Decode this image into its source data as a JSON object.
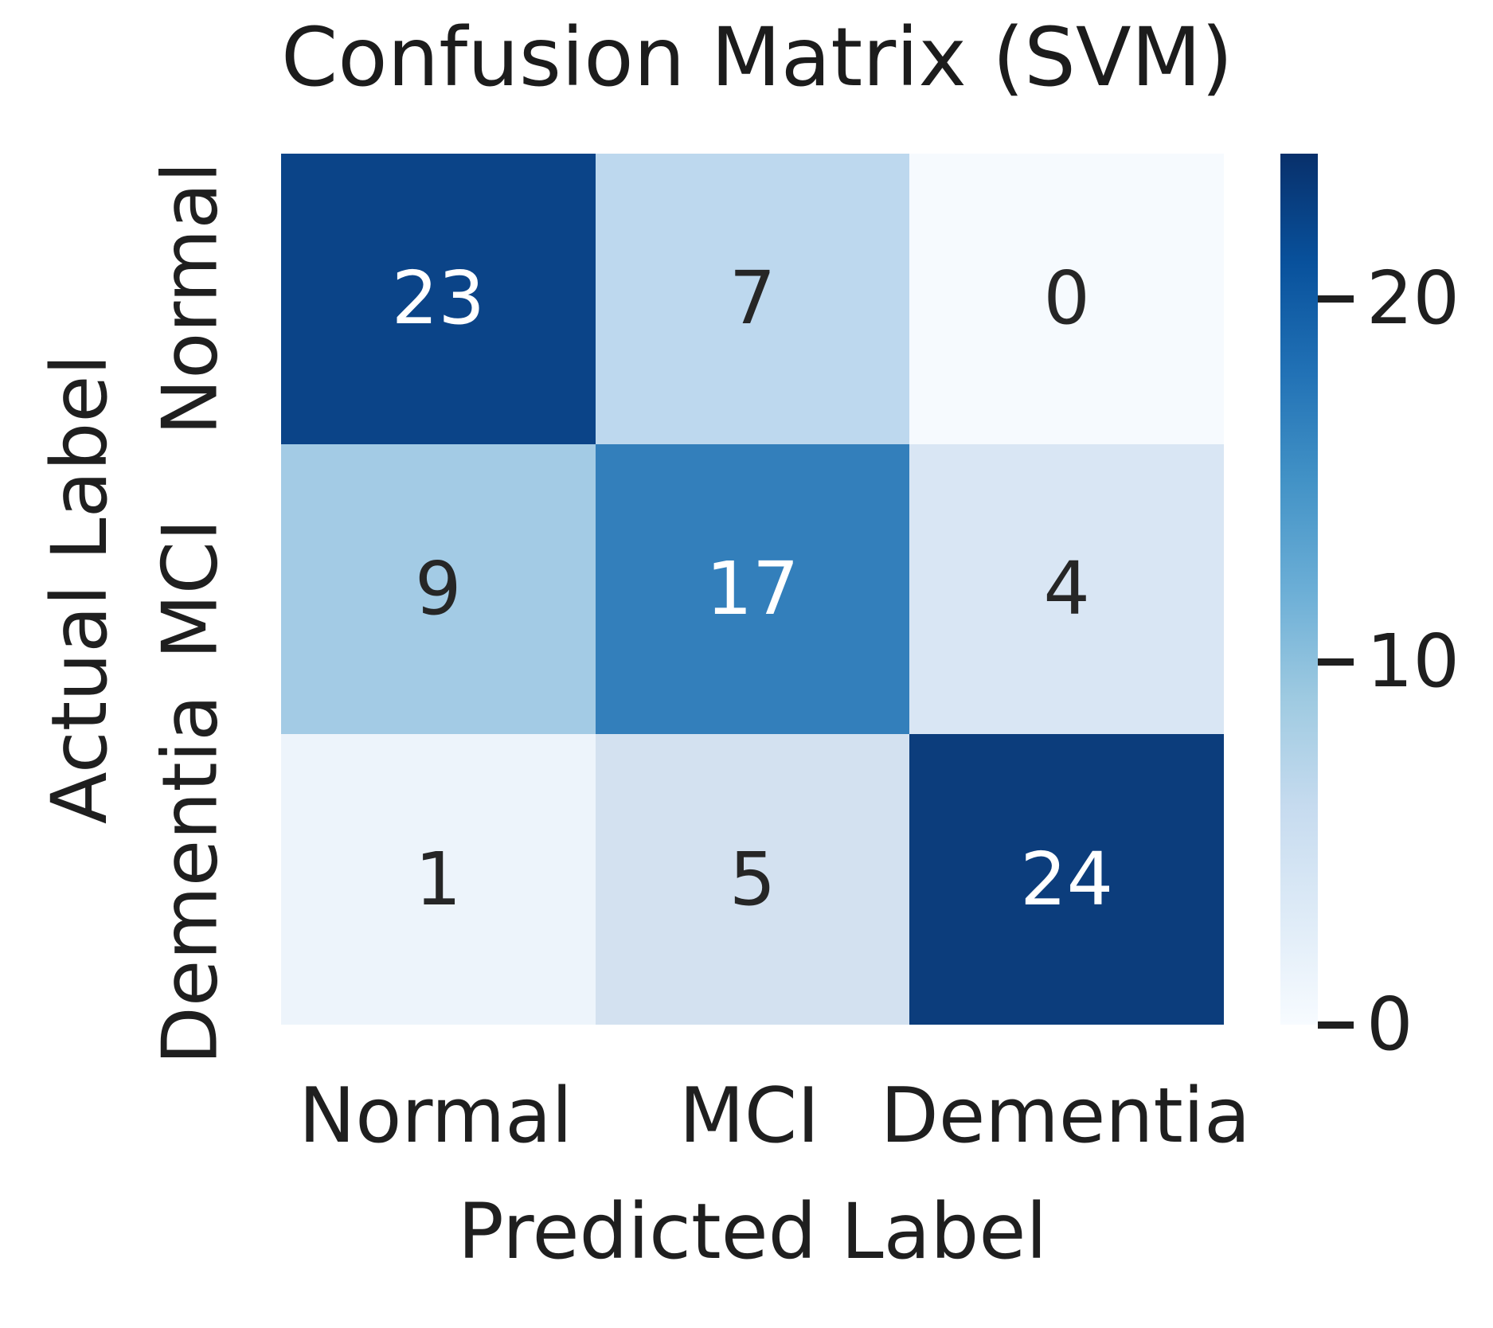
{
  "title": "Confusion Matrix (SVM)",
  "axes": {
    "x_label": "Predicted Label",
    "y_label": "Actual Label",
    "x_ticks": [
      "Normal",
      "MCI",
      "Dementia"
    ],
    "y_ticks": [
      "Normal",
      "MCI",
      "Dementia"
    ]
  },
  "cells": [
    {
      "value": "23",
      "bg": "#0B4488",
      "fg": "#ffffff"
    },
    {
      "value": "7",
      "bg": "#BDD8EE",
      "fg": "#262626"
    },
    {
      "value": "0",
      "bg": "#F6FAFE",
      "fg": "#262626"
    },
    {
      "value": "9",
      "bg": "#A3CBE5",
      "fg": "#262626"
    },
    {
      "value": "17",
      "bg": "#337FBB",
      "fg": "#ffffff"
    },
    {
      "value": "4",
      "bg": "#D9E6F4",
      "fg": "#262626"
    },
    {
      "value": "1",
      "bg": "#EDF4FB",
      "fg": "#262626"
    },
    {
      "value": "5",
      "bg": "#D3E1F0",
      "fg": "#262626"
    },
    {
      "value": "24",
      "bg": "#0C3D7C",
      "fg": "#ffffff"
    }
  ],
  "colorbar": {
    "vmin": 0,
    "vmax": 24,
    "ticks": [
      {
        "value": 20,
        "label": "20"
      },
      {
        "value": 10,
        "label": "10"
      },
      {
        "value": 0,
        "label": "0"
      }
    ],
    "gradient_top_to_bottom": [
      "#08306b",
      "#08519c",
      "#2171b5",
      "#4292c6",
      "#6baed6",
      "#9ecae1",
      "#c6dbef",
      "#deebf7",
      "#f7fbff"
    ]
  },
  "text_color": "#1f1f1f",
  "chart_data": {
    "type": "heatmap",
    "title": "Confusion Matrix (SVM)",
    "xlabel": "Predicted Label",
    "ylabel": "Actual Label",
    "x_categories": [
      "Normal",
      "MCI",
      "Dementia"
    ],
    "y_categories": [
      "Normal",
      "MCI",
      "Dementia"
    ],
    "matrix": [
      [
        23,
        7,
        0
      ],
      [
        9,
        17,
        4
      ],
      [
        1,
        5,
        24
      ]
    ],
    "colormap": "Blues",
    "vmin": 0,
    "vmax": 24,
    "colorbar_ticks": [
      0,
      10,
      20
    ],
    "colorbar_position": "right",
    "grid": false
  }
}
